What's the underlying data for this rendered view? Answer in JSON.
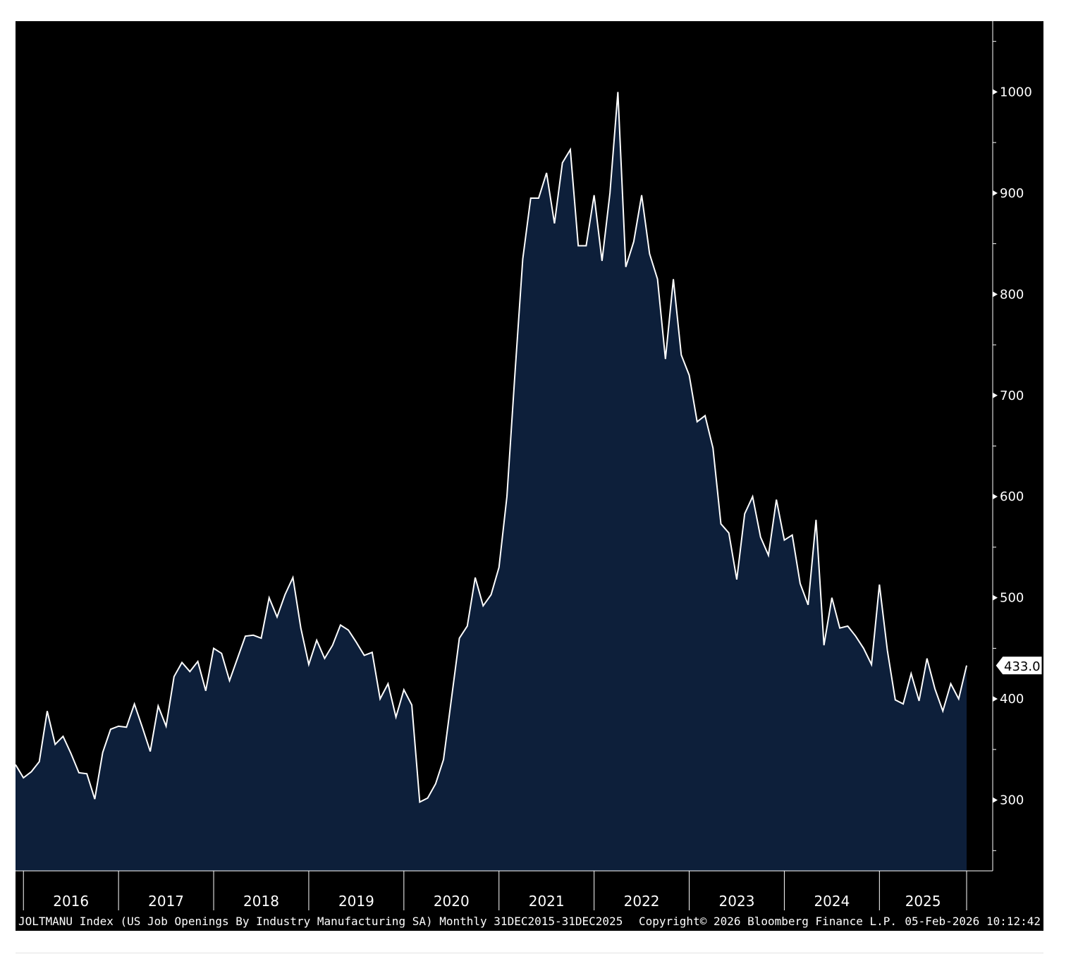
{
  "chart_data": {
    "type": "area",
    "title": "",
    "xlabel": "",
    "ylabel": "",
    "ylim": [
      230,
      1070
    ],
    "yticks": [
      300,
      400,
      500,
      600,
      700,
      800,
      900,
      1000
    ],
    "y_minor_ticks": [
      250,
      350,
      450,
      550,
      650,
      750,
      850,
      950,
      1050
    ],
    "x_start": "2015-12",
    "x_end": "2025-12",
    "year_labels": [
      "2016",
      "2017",
      "2018",
      "2019",
      "2020",
      "2021",
      "2022",
      "2023",
      "2024",
      "2025"
    ],
    "grid": false,
    "legend": "none",
    "last_value_label": "433.0",
    "colors": {
      "background": "#000000",
      "fill": "#0d1f3a",
      "line": "#ffffff",
      "axis": "#ffffff",
      "text": "#ffffff",
      "value_tag_bg": "#ffffff",
      "value_tag_text": "#000000"
    },
    "series": [
      {
        "values": [
          335,
          322,
          328,
          338,
          388,
          355,
          363,
          346,
          327,
          326,
          301,
          347,
          370,
          373,
          372,
          395,
          372,
          348,
          393,
          373,
          422,
          436,
          427,
          437,
          408,
          450,
          445,
          418,
          440,
          462,
          463,
          460,
          500,
          481,
          503,
          520,
          470,
          434,
          458,
          440,
          453,
          473,
          468,
          456,
          443,
          446,
          400,
          415,
          382,
          409,
          394,
          298,
          302,
          316,
          340,
          400,
          460,
          472,
          520,
          492,
          503,
          530,
          600,
          720,
          835,
          895,
          895,
          920,
          870,
          930,
          943,
          848,
          848,
          898,
          833,
          900,
          1000,
          827,
          852,
          898,
          840,
          815,
          736,
          815,
          740,
          720,
          674,
          680,
          648,
          573,
          564,
          518,
          583,
          600,
          560,
          542,
          597,
          557,
          562,
          514,
          493,
          577,
          453,
          500,
          470,
          472,
          462,
          450,
          434,
          513,
          448,
          399,
          395,
          425,
          398,
          440,
          410,
          388,
          415,
          400,
          433
        ]
      }
    ]
  },
  "footer": {
    "description": "JOLTMANU Index (US Job Openings By Industry Manufacturing SA) Monthly 31DEC2015-31DEC2025",
    "copyright": "Copyright© 2026 Bloomberg Finance L.P.",
    "timestamp": "05-Feb-2026 10:12:42"
  }
}
